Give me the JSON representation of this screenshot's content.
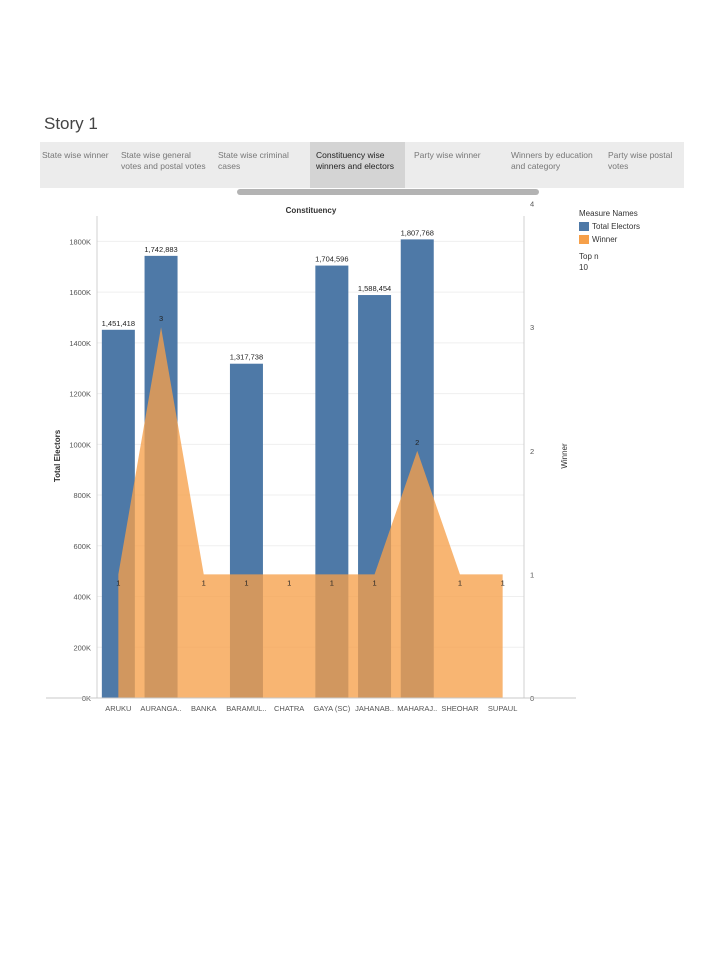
{
  "story": {
    "title": "Story 1"
  },
  "nav": {
    "items": [
      {
        "label": "State wise winner"
      },
      {
        "label": "State wise general votes and postal votes"
      },
      {
        "label": "State wise criminal cases"
      },
      {
        "label": "Constituency wise winners and electors"
      },
      {
        "label": "Party wise winner"
      },
      {
        "label": "Winners by education and category"
      },
      {
        "label": "Party wise postal votes"
      }
    ],
    "active_index": 3
  },
  "legend": {
    "title": "Measure Names",
    "items": [
      {
        "name": "Total Electors",
        "color": "#4e79a7"
      },
      {
        "name": "Winner",
        "color": "#f6a04a"
      }
    ],
    "topn_label": "Top n",
    "topn_value": "10"
  },
  "chart_data": {
    "type": "bar",
    "title": "Constituency",
    "categories": [
      "ARUKU",
      "AURANGA..",
      "BANKA",
      "BARAMUL..",
      "CHATRA",
      "GAYA (SC)",
      "JAHANAB..",
      "MAHARAJ..",
      "SHEOHAR",
      "SUPAUL"
    ],
    "series": [
      {
        "name": "Total Electors",
        "type": "bar",
        "axis": "left",
        "color": "#4e79a7",
        "values": [
          1451418,
          1742883,
          null,
          1317738,
          null,
          1704596,
          1588454,
          1807768,
          null,
          null
        ],
        "labels": [
          "1,451,418",
          "1,742,883",
          "",
          "1,317,738",
          "",
          "1,704,596",
          "1,588,454",
          "1,807,768",
          "",
          ""
        ]
      },
      {
        "name": "Winner",
        "type": "area",
        "axis": "right",
        "color": "#f6a04a",
        "values": [
          1,
          3,
          1,
          1,
          1,
          1,
          1,
          2,
          1,
          1
        ]
      }
    ],
    "ylabel": "Total Electors",
    "ylim": [
      0,
      1900000
    ],
    "yticks": [
      0,
      200000,
      400000,
      600000,
      800000,
      1000000,
      1200000,
      1400000,
      1600000,
      1800000
    ],
    "ytick_labels": [
      "0K",
      "200K",
      "400K",
      "600K",
      "800K",
      "1000K",
      "1200K",
      "1400K",
      "1600K",
      "1800K"
    ],
    "y2label": "Winner",
    "y2lim": [
      0,
      3.9
    ],
    "y2ticks": [
      0,
      1,
      2,
      3,
      4
    ],
    "y2tick_labels": [
      "0",
      "1",
      "2",
      "3",
      "4"
    ],
    "grid": true,
    "legend_position": "right"
  }
}
